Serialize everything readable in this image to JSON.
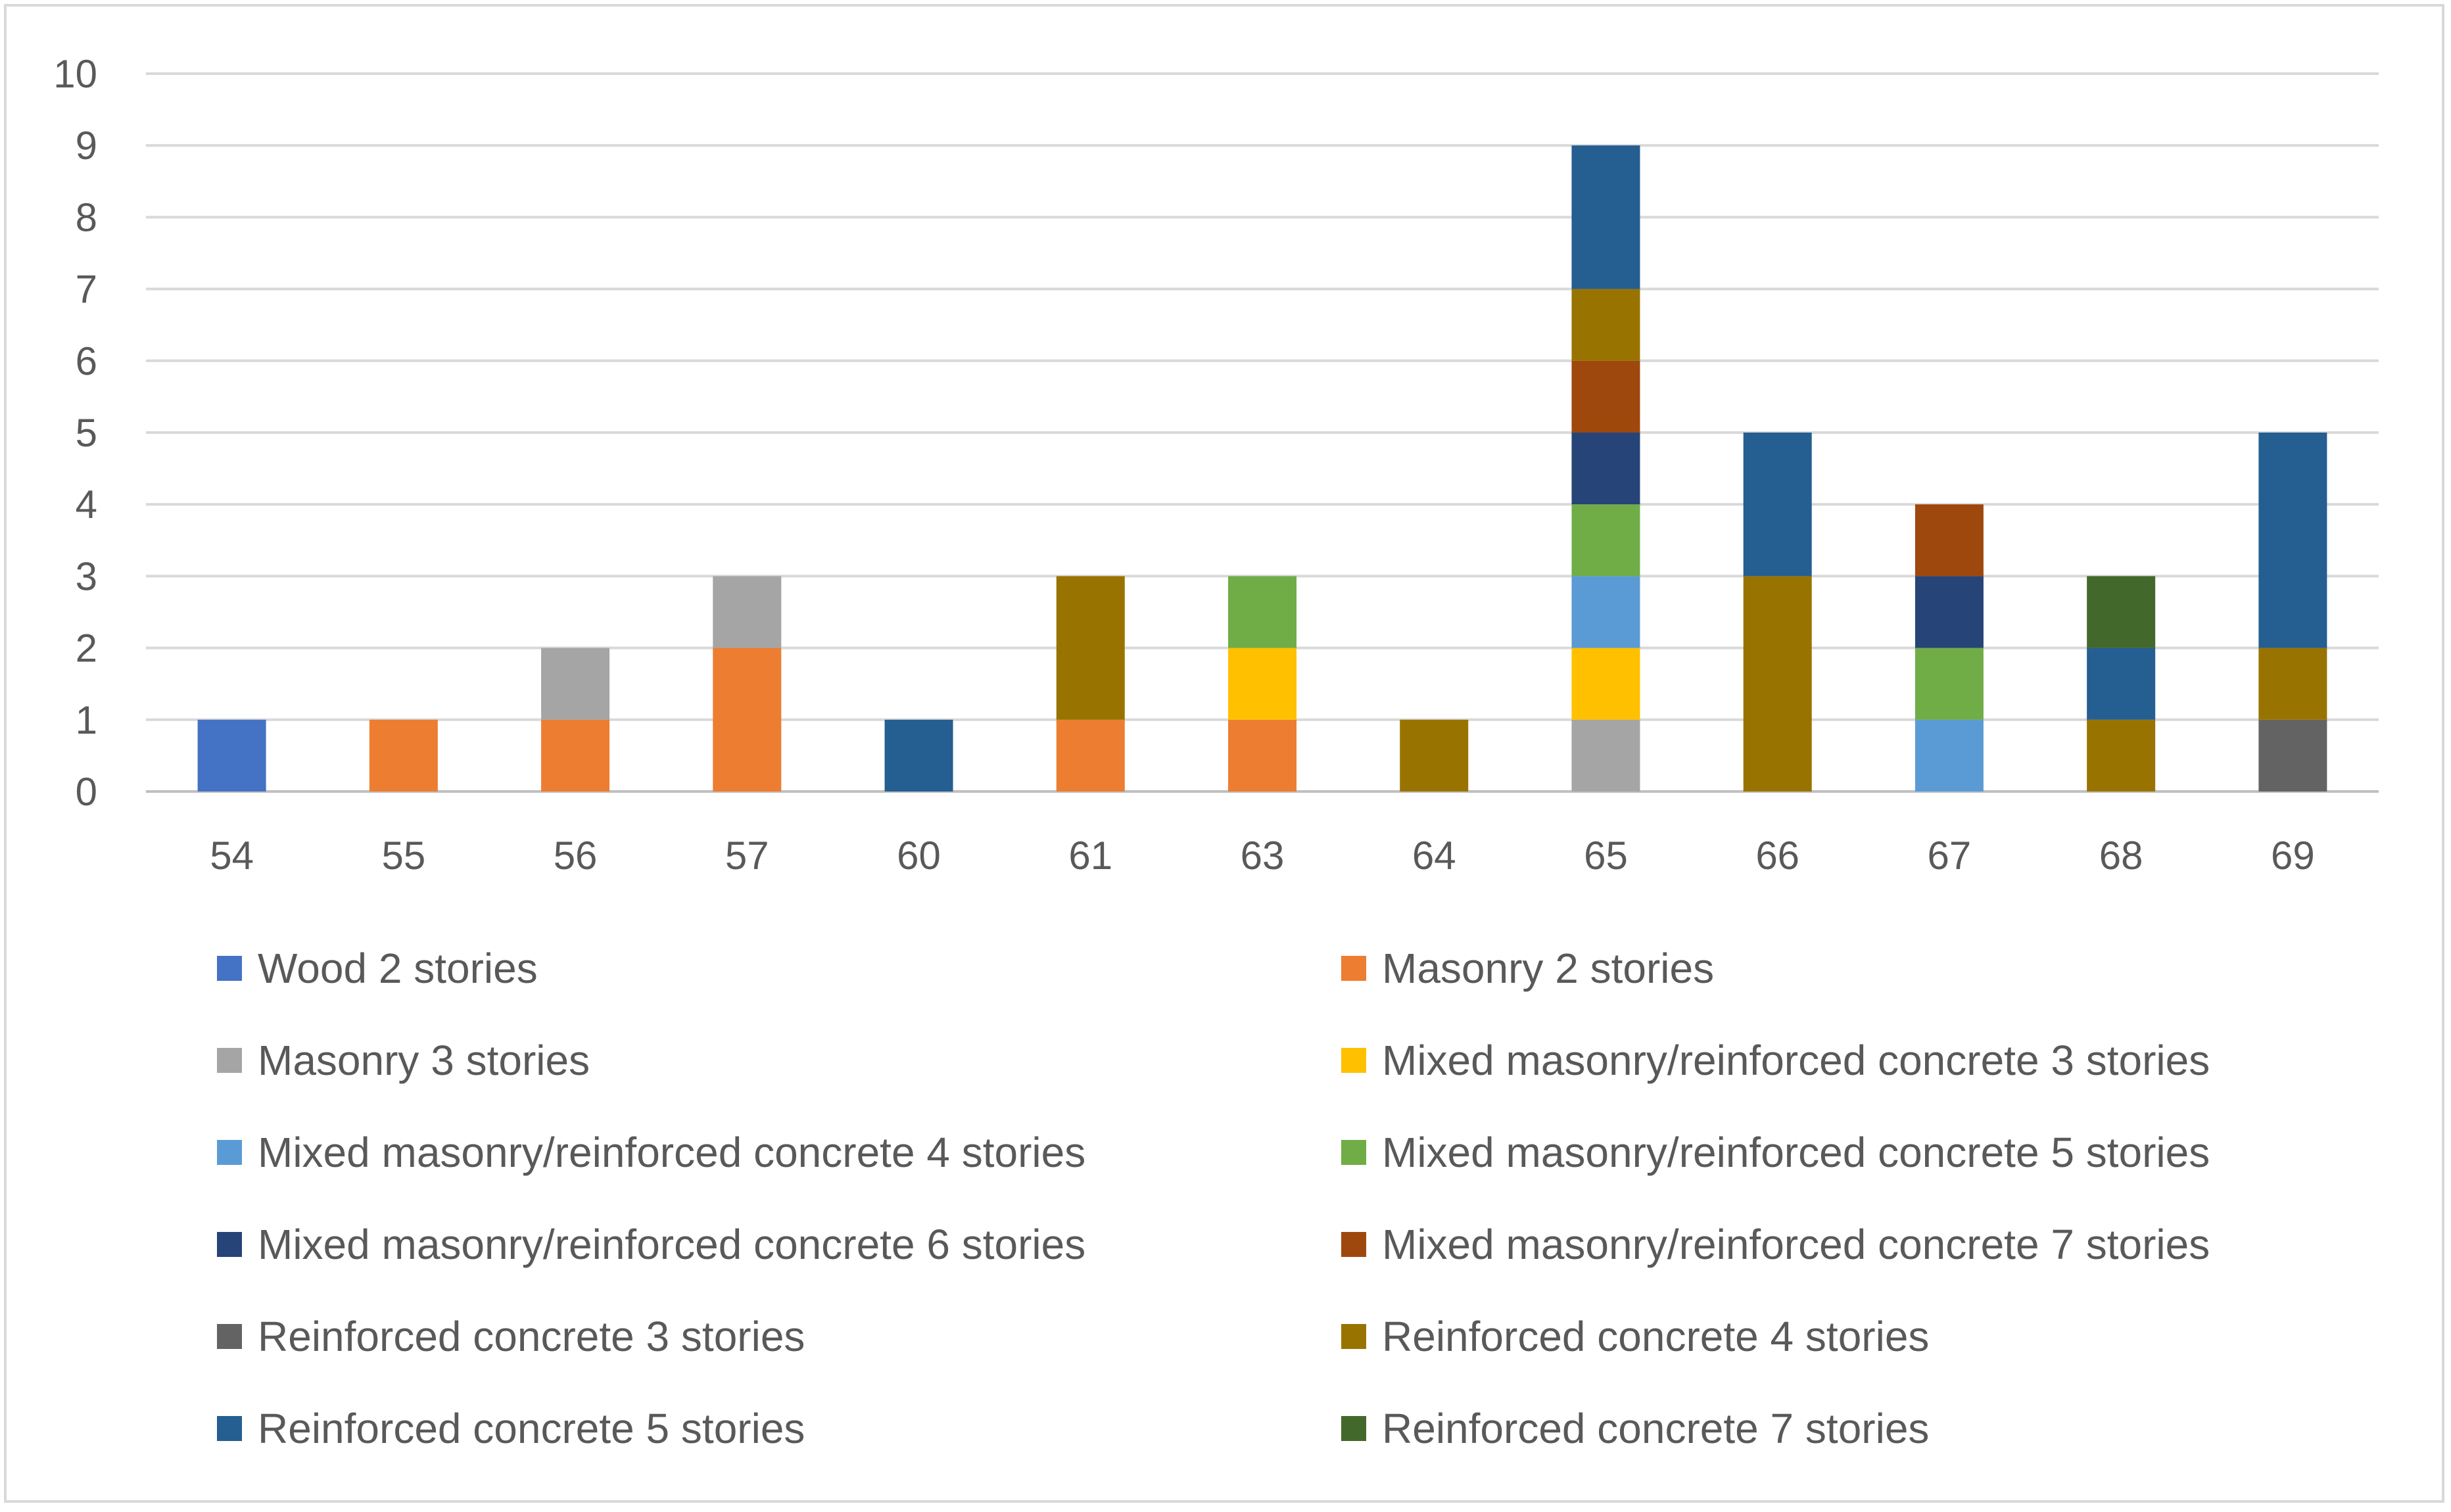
{
  "chart_data": {
    "type": "bar",
    "stacked": true,
    "title": "",
    "xlabel": "",
    "ylabel": "",
    "ylim": [
      0,
      10
    ],
    "yticks": [
      "0",
      "1",
      "2",
      "3",
      "4",
      "5",
      "6",
      "7",
      "8",
      "9",
      "10"
    ],
    "grid": true,
    "legend_position": "bottom",
    "categories": [
      "54",
      "55",
      "56",
      "57",
      "60",
      "61",
      "63",
      "64",
      "65",
      "66",
      "67",
      "68",
      "69"
    ],
    "series": [
      {
        "name": "Wood 2 stories",
        "color": "#4472c4",
        "values": [
          1,
          0,
          0,
          0,
          0,
          0,
          0,
          0,
          0,
          0,
          0,
          0,
          0
        ]
      },
      {
        "name": "Masonry 2 stories",
        "color": "#ed7d31",
        "values": [
          0,
          1,
          1,
          2,
          0,
          1,
          1,
          0,
          0,
          0,
          0,
          0,
          0
        ]
      },
      {
        "name": "Masonry 3 stories",
        "color": "#a5a5a5",
        "values": [
          0,
          0,
          1,
          1,
          0,
          0,
          0,
          0,
          1,
          0,
          0,
          0,
          0
        ]
      },
      {
        "name": "Mixed masonry/reinforced concrete 3 stories",
        "color": "#ffc000",
        "values": [
          0,
          0,
          0,
          0,
          0,
          0,
          1,
          0,
          1,
          0,
          0,
          0,
          0
        ]
      },
      {
        "name": "Mixed masonry/reinforced concrete 4 stories",
        "color": "#5b9bd5",
        "values": [
          0,
          0,
          0,
          0,
          0,
          0,
          0,
          0,
          1,
          0,
          1,
          0,
          0
        ]
      },
      {
        "name": "Mixed masonry/reinforced concrete 5 stories",
        "color": "#70ad47",
        "values": [
          0,
          0,
          0,
          0,
          0,
          0,
          1,
          0,
          1,
          0,
          1,
          0,
          0
        ]
      },
      {
        "name": "Mixed masonry/reinforced concrete 6 stories",
        "color": "#264478",
        "values": [
          0,
          0,
          0,
          0,
          0,
          0,
          0,
          0,
          1,
          0,
          1,
          0,
          0
        ]
      },
      {
        "name": "Mixed masonry/reinforced concrete 7 stories",
        "color": "#9e480e",
        "values": [
          0,
          0,
          0,
          0,
          0,
          0,
          0,
          0,
          1,
          0,
          1,
          0,
          0
        ]
      },
      {
        "name": "Reinforced concrete 3 stories",
        "color": "#636363",
        "values": [
          0,
          0,
          0,
          0,
          0,
          0,
          0,
          0,
          0,
          0,
          0,
          0,
          1
        ]
      },
      {
        "name": "Reinforced concrete 4 stories",
        "color": "#997300",
        "values": [
          0,
          0,
          0,
          0,
          0,
          2,
          0,
          1,
          1,
          3,
          0,
          1,
          1
        ]
      },
      {
        "name": "Reinforced concrete 5 stories",
        "color": "#255e91",
        "values": [
          0,
          0,
          0,
          0,
          1,
          0,
          0,
          0,
          2,
          2,
          0,
          1,
          3
        ]
      },
      {
        "name": "Reinforced concrete 7 stories",
        "color": "#43682b",
        "values": [
          0,
          0,
          0,
          0,
          0,
          0,
          0,
          0,
          0,
          0,
          0,
          1,
          0
        ]
      }
    ]
  }
}
